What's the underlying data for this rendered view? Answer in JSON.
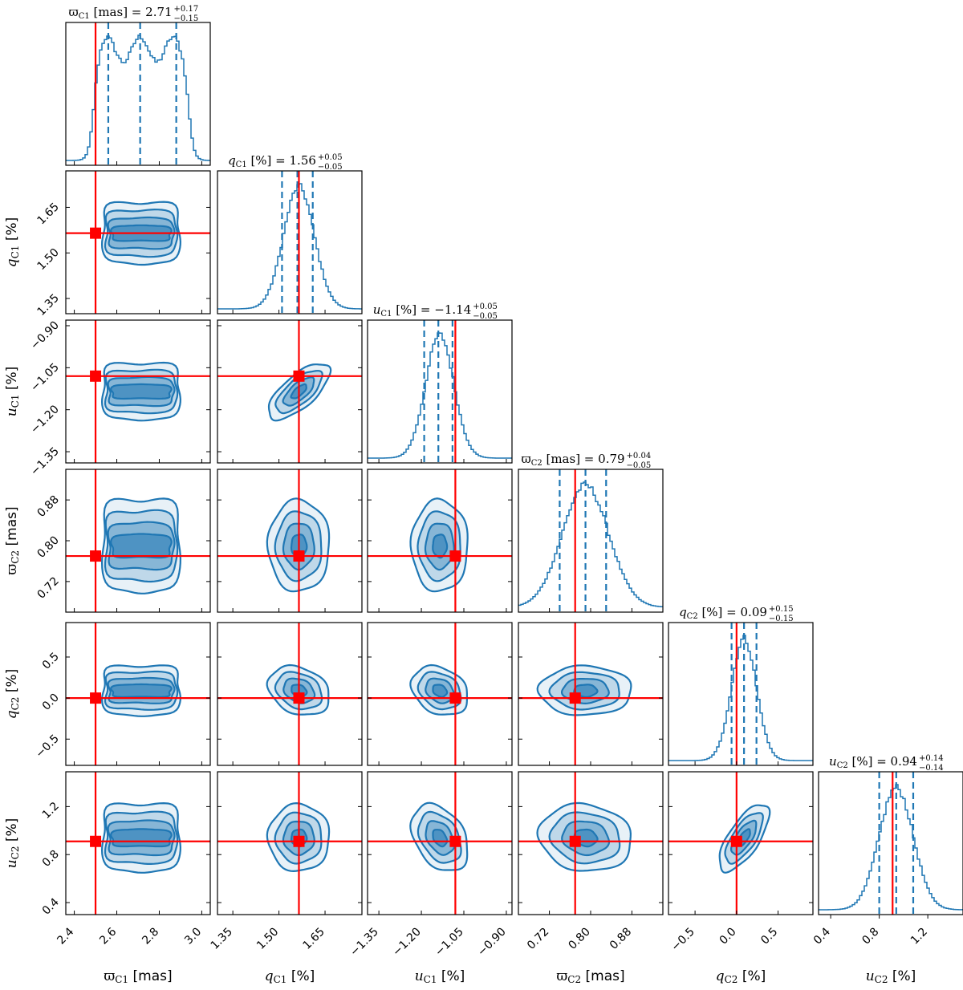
{
  "chart_data": {
    "type": "corner",
    "colors": {
      "posterior": "#1f77b4",
      "truth": "#ff0000"
    },
    "parameters": [
      {
        "key": "plx1",
        "axis_label": "ϖ_C1 [mas]",
        "title": "ϖ_C1 [mas] = 2.71 (+0.17 / −0.15)",
        "title_main": "[mas] = 2.71",
        "title_up": "+0.17",
        "title_dn": "−0.15",
        "lim": [
          2.36,
          3.04
        ],
        "ticks": [
          2.4,
          2.6,
          2.8,
          3.0
        ],
        "tick_labels": [
          "2.4",
          "2.6",
          "2.8",
          "3.0"
        ],
        "truth": 2.5,
        "quantiles": [
          2.56,
          2.71,
          2.88
        ],
        "dist": "flat",
        "flat_range": [
          2.49,
          2.94
        ]
      },
      {
        "key": "q1",
        "axis_label": "q_C1 [%]",
        "title": "q_C1 [%] = 1.56 (+0.05 / −0.05)",
        "title_main": "[%] = 1.56",
        "title_up": "+0.05",
        "title_dn": "−0.05",
        "lim": [
          1.3,
          1.77
        ],
        "ticks": [
          1.35,
          1.5,
          1.65
        ],
        "tick_labels": [
          "1.35",
          "1.50",
          "1.65"
        ],
        "truth": 1.565,
        "quantiles": [
          1.51,
          1.56,
          1.61
        ],
        "dist": "gauss",
        "center": 1.565,
        "sigma": 0.05
      },
      {
        "key": "u1",
        "axis_label": "u_C1 [%]",
        "title": "u_C1 [%] = −1.14 (+0.05 / −0.05)",
        "title_main": "[%] = −1.14",
        "title_up": "+0.05",
        "title_dn": "−0.05",
        "lim": [
          -1.39,
          -0.88
        ],
        "ticks": [
          -1.35,
          -1.2,
          -1.05,
          -0.9
        ],
        "tick_labels": [
          "−1.35",
          "−1.20",
          "−1.05",
          "−0.90"
        ],
        "truth": -1.08,
        "quantiles": [
          -1.19,
          -1.14,
          -1.09
        ],
        "dist": "gauss",
        "center": -1.135,
        "sigma": 0.05
      },
      {
        "key": "plx2",
        "axis_label": "ϖ_C2 [mas]",
        "title": "ϖ_C2 [mas] = 0.79 (+0.04 / −0.05)",
        "title_main": "[mas] = 0.79",
        "title_up": "+0.04",
        "title_dn": "−0.05",
        "lim": [
          0.66,
          0.94
        ],
        "ticks": [
          0.72,
          0.8,
          0.88
        ],
        "tick_labels": [
          "0.72",
          "0.80",
          "0.88"
        ],
        "truth": 0.77,
        "quantiles": [
          0.74,
          0.79,
          0.83
        ],
        "dist": "gauss",
        "center": 0.79,
        "sigma": 0.045
      },
      {
        "key": "q2",
        "axis_label": "q_C2 [%]",
        "title": "q_C2 [%] = 0.09 (+0.15 / −0.15)",
        "title_main": "[%] = 0.09",
        "title_up": "+0.15",
        "title_dn": "−0.15",
        "lim": [
          -0.82,
          0.92
        ],
        "ticks": [
          -0.5,
          0.0,
          0.5
        ],
        "tick_labels": [
          "−0.5",
          "0.0",
          "0.5"
        ],
        "truth": 0.0,
        "quantiles": [
          -0.06,
          0.09,
          0.24
        ],
        "dist": "gauss",
        "center": 0.09,
        "sigma": 0.15
      },
      {
        "key": "u2",
        "axis_label": "u_C2 [%]",
        "title": "u_C2 [%] = 0.94 (+0.14 / −0.14)",
        "title_main": "[%] = 0.94",
        "title_up": "+0.14",
        "title_dn": "−0.14",
        "lim": [
          0.3,
          1.49
        ],
        "ticks": [
          0.4,
          0.8,
          1.2
        ],
        "tick_labels": [
          "0.4",
          "0.8",
          "1.2"
        ],
        "truth": 0.91,
        "quantiles": [
          0.8,
          0.94,
          1.08
        ],
        "dist": "gauss",
        "center": 0.94,
        "sigma": 0.14
      }
    ],
    "correlations": {
      "q1-u1": 0.7,
      "q2-u2": 0.7,
      "u1-u2": -0.35,
      "q1-q2": -0.25,
      "u1-q2": -0.25,
      "plx2-u2": -0.1
    }
  }
}
